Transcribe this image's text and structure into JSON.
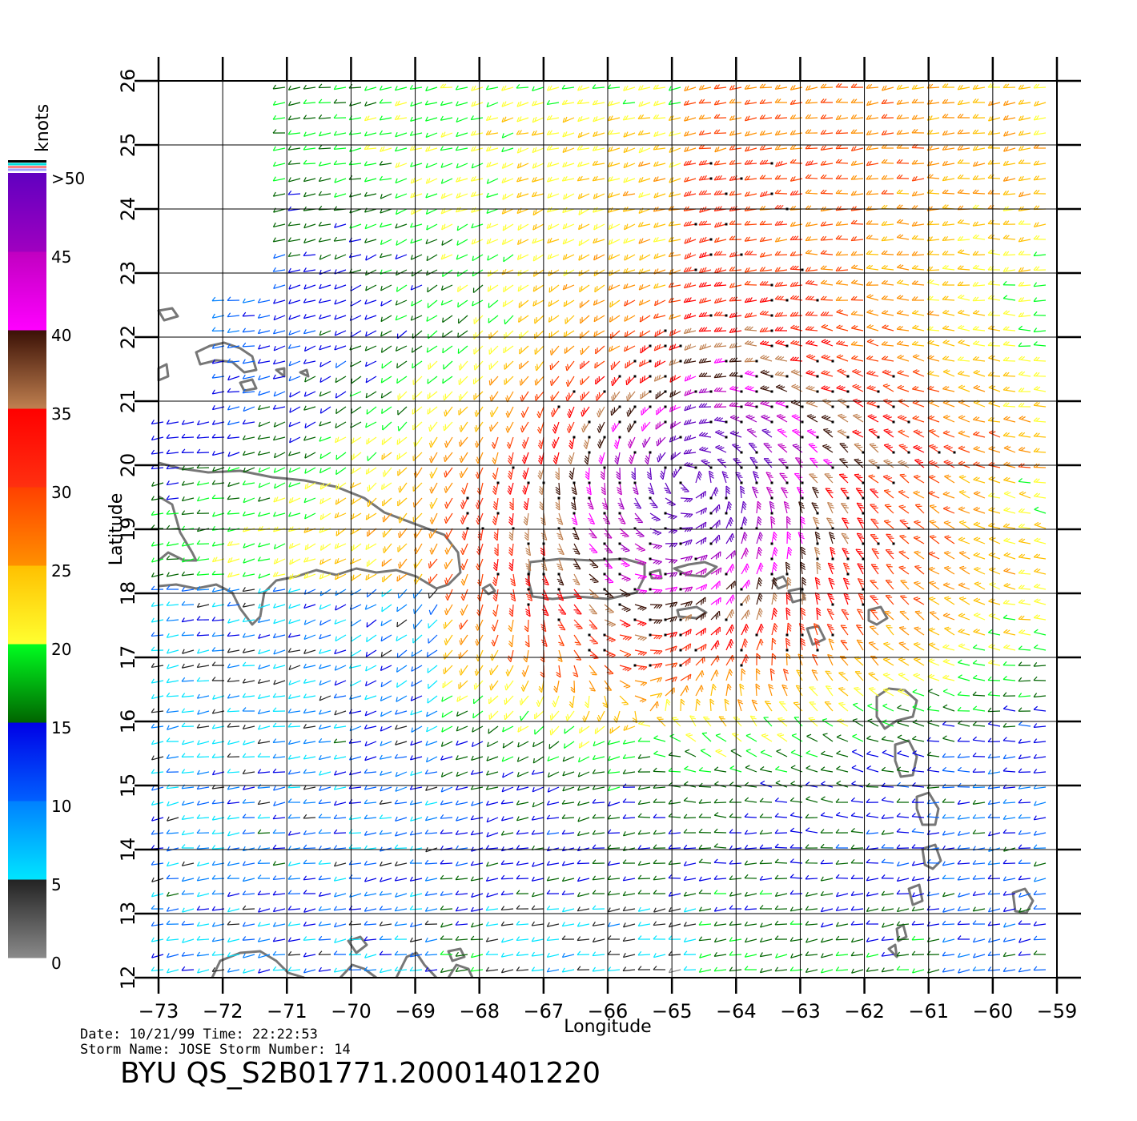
{
  "map": {
    "xlabel": "Longitude",
    "ylabel": "Latitude",
    "lon_ticks": [
      -73,
      -72,
      -71,
      -70,
      -69,
      -68,
      -67,
      -66,
      -65,
      -64,
      -63,
      -62,
      -61,
      -60,
      -59
    ],
    "lat_ticks": [
      12,
      13,
      14,
      15,
      16,
      17,
      18,
      19,
      20,
      21,
      22,
      23,
      24,
      25,
      26
    ],
    "lon_range": [
      -73,
      -59
    ],
    "lat_range": [
      12,
      26
    ],
    "grid": true,
    "storm_center": {
      "lon": -64.7,
      "lat": 19.8
    },
    "coastline_color": "#777777",
    "gridline_color": "#000000"
  },
  "legend": {
    "unit_label": "knots",
    "labels": [
      ">50",
      "45",
      "40",
      "35",
      "30",
      "25",
      "20",
      "15",
      "10",
      "5",
      "0"
    ],
    "bins": [
      {
        "min": 0,
        "max": 5,
        "colors": [
          "#8a8a8a",
          "#222222"
        ]
      },
      {
        "min": 5,
        "max": 10,
        "colors": [
          "#00e5ff",
          "#0080ff"
        ]
      },
      {
        "min": 10,
        "max": 15,
        "colors": [
          "#0060ff",
          "#0000e6"
        ]
      },
      {
        "min": 15,
        "max": 20,
        "colors": [
          "#006400",
          "#00ff20"
        ]
      },
      {
        "min": 20,
        "max": 25,
        "colors": [
          "#ffff30",
          "#ffc000"
        ]
      },
      {
        "min": 25,
        "max": 30,
        "colors": [
          "#ff9000",
          "#ff4000"
        ]
      },
      {
        "min": 30,
        "max": 35,
        "colors": [
          "#ff3010",
          "#ff0000"
        ]
      },
      {
        "min": 35,
        "max": 40,
        "colors": [
          "#c08050",
          "#3a1005"
        ]
      },
      {
        "min": 40,
        "max": 45,
        "colors": [
          "#ff00ff",
          "#c000c0"
        ]
      },
      {
        "min": 45,
        "max": 50,
        "colors": [
          "#a000c0",
          "#6000c0"
        ]
      }
    ],
    "top_stripes": [
      "#000000",
      "#00e0e0",
      "#ff8080",
      "#a0a0ff"
    ]
  },
  "info": {
    "date_line": "Date: 10/21/99   Time: 22:22:53",
    "storm_line": "Storm Name: JOSE   Storm Number: 14",
    "file_title": "BYU  QS_S2B01771.20001401220"
  }
}
